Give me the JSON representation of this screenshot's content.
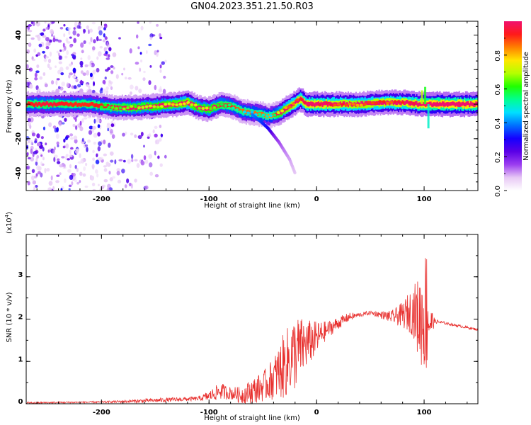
{
  "figure_title": "GN04.2023.351.21.50.R03",
  "colors": {
    "axis": "#000000",
    "snr_line": "#e8312f",
    "background": "#ffffff"
  },
  "colorbar": {
    "label": "Normalized spectral amplitude",
    "range": [
      0.0,
      1.0
    ],
    "tick_labels": [
      "0.0",
      "0.2",
      "0.4",
      "0.6",
      "0.8"
    ],
    "colormap": [
      "#ffffff",
      "#e7c8f5",
      "#9b3df0",
      "#5a00e6",
      "#1500ff",
      "#0070ff",
      "#00e0ff",
      "#00ff90",
      "#20ff00",
      "#b4ff00",
      "#ffe600",
      "#ff8000",
      "#ff1a1a",
      "#f0106e"
    ]
  },
  "chart_data": [
    {
      "type": "heatmap",
      "title": "",
      "xlabel": "Height of straight line (km)",
      "ylabel": "Frequency (Hz)",
      "xlim": [
        -270,
        150
      ],
      "ylim": [
        -50,
        48
      ],
      "xticks": [
        -200,
        -100,
        0,
        100
      ],
      "xtick_labels": [
        "-200",
        "-100",
        "0",
        "100"
      ],
      "yticks": [
        -40,
        -20,
        0,
        20,
        40
      ],
      "ytick_labels": [
        "-40",
        "-20",
        "0",
        "20",
        "40"
      ],
      "ridge": {
        "x": [
          -270,
          -250,
          -230,
          -210,
          -190,
          -170,
          -150,
          -130,
          -120,
          -110,
          -100,
          -90,
          -80,
          -70,
          -60,
          -50,
          -45,
          -40,
          -35,
          -30,
          -25,
          -20,
          -15,
          -10,
          -5,
          0,
          20,
          40,
          60,
          80,
          95,
          100,
          110,
          130,
          150
        ],
        "y": [
          0,
          0,
          0,
          0,
          -2,
          -2,
          -1,
          0,
          1,
          -2,
          -3,
          0,
          -1,
          -4,
          -5,
          -6,
          -7,
          -6,
          -5,
          -3,
          -1,
          1,
          3,
          0,
          0,
          0,
          0,
          0,
          1,
          1,
          0,
          0,
          0,
          0,
          0
        ],
        "amplitude": [
          0.45,
          0.5,
          0.45,
          0.45,
          0.5,
          0.55,
          0.6,
          0.65,
          0.7,
          0.55,
          0.6,
          0.5,
          0.45,
          0.4,
          0.4,
          0.4,
          0.35,
          0.4,
          0.6,
          0.7,
          0.75,
          0.8,
          0.85,
          0.85,
          0.9,
          0.9,
          0.8,
          0.75,
          0.8,
          0.85,
          0.9,
          0.95,
          1.0,
          0.95,
          0.95
        ]
      },
      "branch": {
        "x": [
          -60,
          -52,
          -45,
          -40,
          -35,
          -30,
          -25,
          -20
        ],
        "y": [
          -6,
          -10,
          -14,
          -18,
          -22,
          -27,
          -32,
          -40
        ],
        "amplitude": [
          0.4,
          0.35,
          0.3,
          0.2,
          0.15,
          0.12,
          0.1,
          0.08
        ]
      },
      "noise_region_x": [
        -270,
        -140
      ]
    },
    {
      "type": "line",
      "title": "",
      "xlabel": "Height of straight line (km)",
      "ylabel": "SNR (10 * v/v)",
      "y_multiplier_label": "(x10",
      "y_multiplier_exponent": "4",
      "y_multiplier_close": ")",
      "xlim": [
        -270,
        150
      ],
      "ylim": [
        0,
        4
      ],
      "xticks": [
        -200,
        -100,
        0,
        100
      ],
      "xtick_labels": [
        "-200",
        "-100",
        "0",
        "100"
      ],
      "yticks": [
        0,
        1,
        2,
        3
      ],
      "ytick_labels": [
        "0",
        "1",
        "2",
        "3"
      ],
      "series": [
        {
          "x": [
            -270,
            -240,
            -200,
            -170,
            -150,
            -130,
            -110,
            -100,
            -90,
            -80,
            -70,
            -60,
            -50,
            -40,
            -30,
            -20,
            -10,
            0,
            10,
            20,
            30,
            40,
            50,
            60,
            70,
            80,
            90,
            95,
            100,
            103,
            105,
            110,
            120,
            130,
            150
          ],
          "y": [
            0.02,
            0.03,
            0.04,
            0.06,
            0.08,
            0.1,
            0.12,
            0.18,
            0.3,
            0.25,
            0.2,
            0.3,
            0.4,
            0.6,
            0.9,
            1.2,
            1.4,
            1.55,
            1.75,
            1.9,
            2.05,
            2.1,
            2.15,
            2.1,
            2.05,
            2.1,
            2.2,
            2.0,
            2.1,
            2.3,
            1.9,
            1.95,
            1.9,
            1.85,
            1.75
          ],
          "amplitude": [
            0.02,
            0.02,
            0.02,
            0.04,
            0.05,
            0.05,
            0.05,
            0.12,
            0.2,
            0.15,
            0.2,
            0.3,
            0.35,
            0.5,
            0.8,
            0.9,
            0.6,
            0.4,
            0.2,
            0.15,
            0.1,
            0.05,
            0.05,
            0.08,
            0.15,
            0.3,
            0.6,
            1.0,
            1.4,
            1.7,
            0.5,
            0.05,
            0.03,
            0.03,
            0.03
          ]
        }
      ]
    }
  ]
}
